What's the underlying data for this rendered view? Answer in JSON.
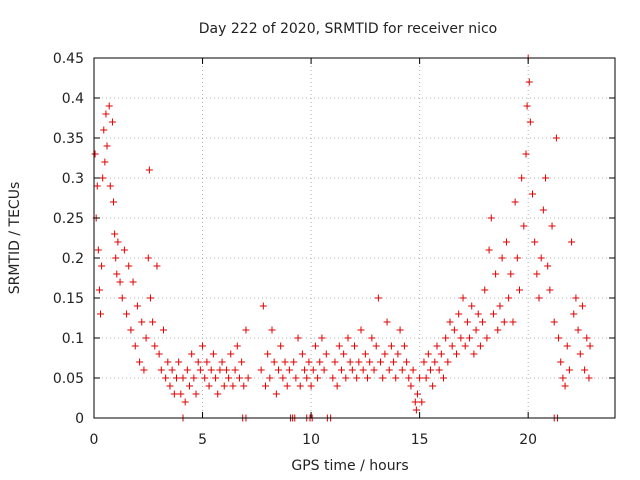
{
  "chart_data": {
    "type": "scatter",
    "title": "Day 222 of 2020, SRMTID for receiver nico",
    "xlabel": "GPS time / hours",
    "ylabel": "SRMTID / TECUs",
    "xlim": [
      0,
      24
    ],
    "ylim": [
      0,
      0.45
    ],
    "x_ticks": [
      0,
      5,
      10,
      15,
      20
    ],
    "x_tick_labels": [
      "0",
      "5",
      "10",
      "15",
      "20"
    ],
    "y_ticks": [
      0,
      0.05,
      0.1,
      0.15,
      0.2,
      0.25,
      0.3,
      0.35,
      0.4,
      0.45
    ],
    "y_tick_labels": [
      "0",
      "0.05",
      "0.1",
      "0.15",
      "0.2",
      "0.25",
      "0.3",
      "0.35",
      "0.4",
      "0.45"
    ],
    "grid": true,
    "marker": "+",
    "colors": {
      "series": "#e00000",
      "grid": "#b0b0b0",
      "axis": "#000000"
    },
    "series": [
      {
        "name": "SRMTID",
        "points": [
          [
            0.05,
            0.33
          ],
          [
            0.1,
            0.25
          ],
          [
            0.15,
            0.29
          ],
          [
            0.2,
            0.21
          ],
          [
            0.25,
            0.16
          ],
          [
            0.3,
            0.13
          ],
          [
            0.35,
            0.19
          ],
          [
            0.4,
            0.3
          ],
          [
            0.45,
            0.36
          ],
          [
            0.5,
            0.32
          ],
          [
            0.55,
            0.38
          ],
          [
            0.6,
            0.34
          ],
          [
            0.7,
            0.39
          ],
          [
            0.75,
            0.29
          ],
          [
            0.85,
            0.37
          ],
          [
            0.9,
            0.27
          ],
          [
            0.95,
            0.23
          ],
          [
            1.0,
            0.2
          ],
          [
            1.05,
            0.18
          ],
          [
            1.1,
            0.22
          ],
          [
            1.2,
            0.17
          ],
          [
            1.3,
            0.15
          ],
          [
            1.4,
            0.21
          ],
          [
            1.5,
            0.13
          ],
          [
            1.6,
            0.19
          ],
          [
            1.7,
            0.11
          ],
          [
            1.8,
            0.17
          ],
          [
            1.9,
            0.09
          ],
          [
            2.0,
            0.14
          ],
          [
            2.1,
            0.07
          ],
          [
            2.2,
            0.12
          ],
          [
            2.3,
            0.06
          ],
          [
            2.4,
            0.1
          ],
          [
            2.5,
            0.2
          ],
          [
            2.55,
            0.31
          ],
          [
            2.6,
            0.15
          ],
          [
            2.7,
            0.12
          ],
          [
            2.8,
            0.09
          ],
          [
            2.9,
            0.19
          ],
          [
            3.0,
            0.08
          ],
          [
            3.1,
            0.06
          ],
          [
            3.2,
            0.11
          ],
          [
            3.3,
            0.05
          ],
          [
            3.4,
            0.07
          ],
          [
            3.5,
            0.04
          ],
          [
            3.6,
            0.06
          ],
          [
            3.7,
            0.03
          ],
          [
            3.8,
            0.05
          ],
          [
            3.9,
            0.07
          ],
          [
            4.0,
            0.03
          ],
          [
            4.1,
            0.05
          ],
          [
            4.2,
            0.02
          ],
          [
            4.3,
            0.06
          ],
          [
            4.4,
            0.04
          ],
          [
            4.5,
            0.08
          ],
          [
            4.6,
            0.05
          ],
          [
            4.7,
            0.03
          ],
          [
            4.8,
            0.07
          ],
          [
            4.9,
            0.06
          ],
          [
            5.0,
            0.09
          ],
          [
            5.1,
            0.05
          ],
          [
            5.2,
            0.07
          ],
          [
            5.3,
            0.04
          ],
          [
            5.4,
            0.06
          ],
          [
            5.5,
            0.08
          ],
          [
            5.6,
            0.05
          ],
          [
            5.7,
            0.03
          ],
          [
            5.8,
            0.06
          ],
          [
            5.9,
            0.07
          ],
          [
            6.0,
            0.04
          ],
          [
            6.1,
            0.06
          ],
          [
            6.2,
            0.05
          ],
          [
            6.3,
            0.08
          ],
          [
            6.4,
            0.04
          ],
          [
            6.5,
            0.06
          ],
          [
            6.6,
            0.09
          ],
          [
            6.7,
            0.05
          ],
          [
            6.8,
            0.07
          ],
          [
            6.9,
            0.04
          ],
          [
            7.0,
            0.11
          ],
          [
            7.1,
            0.05
          ],
          [
            7.7,
            0.06
          ],
          [
            7.8,
            0.14
          ],
          [
            7.9,
            0.04
          ],
          [
            8.0,
            0.08
          ],
          [
            8.1,
            0.05
          ],
          [
            8.2,
            0.11
          ],
          [
            8.3,
            0.07
          ],
          [
            8.4,
            0.03
          ],
          [
            8.5,
            0.06
          ],
          [
            8.6,
            0.09
          ],
          [
            8.7,
            0.05
          ],
          [
            8.8,
            0.07
          ],
          [
            8.9,
            0.04
          ],
          [
            9.0,
            0.06
          ],
          [
            9.2,
            0.07
          ],
          [
            9.3,
            0.05
          ],
          [
            9.4,
            0.1
          ],
          [
            9.5,
            0.04
          ],
          [
            9.6,
            0.08
          ],
          [
            9.7,
            0.06
          ],
          [
            9.8,
            0.05
          ],
          [
            9.9,
            0.07
          ],
          [
            10.0,
            0.04
          ],
          [
            10.1,
            0.06
          ],
          [
            10.2,
            0.09
          ],
          [
            10.3,
            0.05
          ],
          [
            10.4,
            0.07
          ],
          [
            10.5,
            0.1
          ],
          [
            10.6,
            0.06
          ],
          [
            10.7,
            0.08
          ],
          [
            11.0,
            0.05
          ],
          [
            11.1,
            0.07
          ],
          [
            11.2,
            0.04
          ],
          [
            11.3,
            0.09
          ],
          [
            11.4,
            0.06
          ],
          [
            11.5,
            0.08
          ],
          [
            11.6,
            0.05
          ],
          [
            11.7,
            0.1
          ],
          [
            11.8,
            0.07
          ],
          [
            11.9,
            0.06
          ],
          [
            12.0,
            0.09
          ],
          [
            12.1,
            0.05
          ],
          [
            12.2,
            0.07
          ],
          [
            12.3,
            0.11
          ],
          [
            12.4,
            0.06
          ],
          [
            12.5,
            0.08
          ],
          [
            12.6,
            0.05
          ],
          [
            12.7,
            0.07
          ],
          [
            12.8,
            0.1
          ],
          [
            12.9,
            0.06
          ],
          [
            13.0,
            0.09
          ],
          [
            13.1,
            0.15
          ],
          [
            13.2,
            0.07
          ],
          [
            13.3,
            0.05
          ],
          [
            13.4,
            0.08
          ],
          [
            13.5,
            0.12
          ],
          [
            13.6,
            0.06
          ],
          [
            13.7,
            0.09
          ],
          [
            13.8,
            0.07
          ],
          [
            13.9,
            0.05
          ],
          [
            14.0,
            0.08
          ],
          [
            14.1,
            0.11
          ],
          [
            14.2,
            0.06
          ],
          [
            14.3,
            0.09
          ],
          [
            14.4,
            0.07
          ],
          [
            14.5,
            0.05
          ],
          [
            14.6,
            0.04
          ],
          [
            14.7,
            0.06
          ],
          [
            14.8,
            0.02
          ],
          [
            14.85,
            0.01
          ],
          [
            14.9,
            0.03
          ],
          [
            15.0,
            0.05
          ],
          [
            15.1,
            0.02
          ],
          [
            15.2,
            0.07
          ],
          [
            15.3,
            0.05
          ],
          [
            15.4,
            0.08
          ],
          [
            15.5,
            0.06
          ],
          [
            15.6,
            0.04
          ],
          [
            15.7,
            0.07
          ],
          [
            15.8,
            0.09
          ],
          [
            15.9,
            0.06
          ],
          [
            16.0,
            0.08
          ],
          [
            16.1,
            0.05
          ],
          [
            16.2,
            0.1
          ],
          [
            16.3,
            0.07
          ],
          [
            16.4,
            0.12
          ],
          [
            16.5,
            0.09
          ],
          [
            16.6,
            0.11
          ],
          [
            16.7,
            0.08
          ],
          [
            16.8,
            0.13
          ],
          [
            16.9,
            0.1
          ],
          [
            17.0,
            0.15
          ],
          [
            17.1,
            0.09
          ],
          [
            17.2,
            0.12
          ],
          [
            17.3,
            0.1
          ],
          [
            17.4,
            0.14
          ],
          [
            17.5,
            0.08
          ],
          [
            17.6,
            0.11
          ],
          [
            17.7,
            0.13
          ],
          [
            17.8,
            0.09
          ],
          [
            17.9,
            0.12
          ],
          [
            18.0,
            0.16
          ],
          [
            18.1,
            0.1
          ],
          [
            18.2,
            0.21
          ],
          [
            18.3,
            0.25
          ],
          [
            18.4,
            0.13
          ],
          [
            18.5,
            0.18
          ],
          [
            18.6,
            0.11
          ],
          [
            18.7,
            0.14
          ],
          [
            18.8,
            0.2
          ],
          [
            18.9,
            0.12
          ],
          [
            19.0,
            0.22
          ],
          [
            19.1,
            0.15
          ],
          [
            19.2,
            0.18
          ],
          [
            19.3,
            0.12
          ],
          [
            19.4,
            0.27
          ],
          [
            19.5,
            0.2
          ],
          [
            19.6,
            0.16
          ],
          [
            19.7,
            0.3
          ],
          [
            19.8,
            0.24
          ],
          [
            19.9,
            0.33
          ],
          [
            19.95,
            0.39
          ],
          [
            20.0,
            0.45
          ],
          [
            20.05,
            0.42
          ],
          [
            20.1,
            0.37
          ],
          [
            20.2,
            0.28
          ],
          [
            20.3,
            0.22
          ],
          [
            20.4,
            0.18
          ],
          [
            20.5,
            0.15
          ],
          [
            20.6,
            0.2
          ],
          [
            20.7,
            0.26
          ],
          [
            20.8,
            0.3
          ],
          [
            20.9,
            0.19
          ],
          [
            21.0,
            0.16
          ],
          [
            21.1,
            0.24
          ],
          [
            21.2,
            0.12
          ],
          [
            21.3,
            0.35
          ],
          [
            21.4,
            0.1
          ],
          [
            21.5,
            0.07
          ],
          [
            21.6,
            0.05
          ],
          [
            21.7,
            0.04
          ],
          [
            21.8,
            0.09
          ],
          [
            21.9,
            0.06
          ],
          [
            22.0,
            0.22
          ],
          [
            22.1,
            0.13
          ],
          [
            22.2,
            0.15
          ],
          [
            22.3,
            0.11
          ],
          [
            22.4,
            0.08
          ],
          [
            22.5,
            0.14
          ],
          [
            22.6,
            0.06
          ],
          [
            22.7,
            0.1
          ],
          [
            22.8,
            0.05
          ],
          [
            22.85,
            0.09
          ],
          [
            4.1,
            0.0
          ],
          [
            6.85,
            0.0
          ],
          [
            7.0,
            0.0
          ],
          [
            9.05,
            0.0
          ],
          [
            9.15,
            0.0
          ],
          [
            9.25,
            0.0
          ],
          [
            9.8,
            0.0
          ],
          [
            9.95,
            0.0
          ],
          [
            10.05,
            0.0
          ],
          [
            10.75,
            0.0
          ],
          [
            10.9,
            0.0
          ],
          [
            21.2,
            0.0
          ],
          [
            21.35,
            0.0
          ]
        ]
      }
    ]
  }
}
